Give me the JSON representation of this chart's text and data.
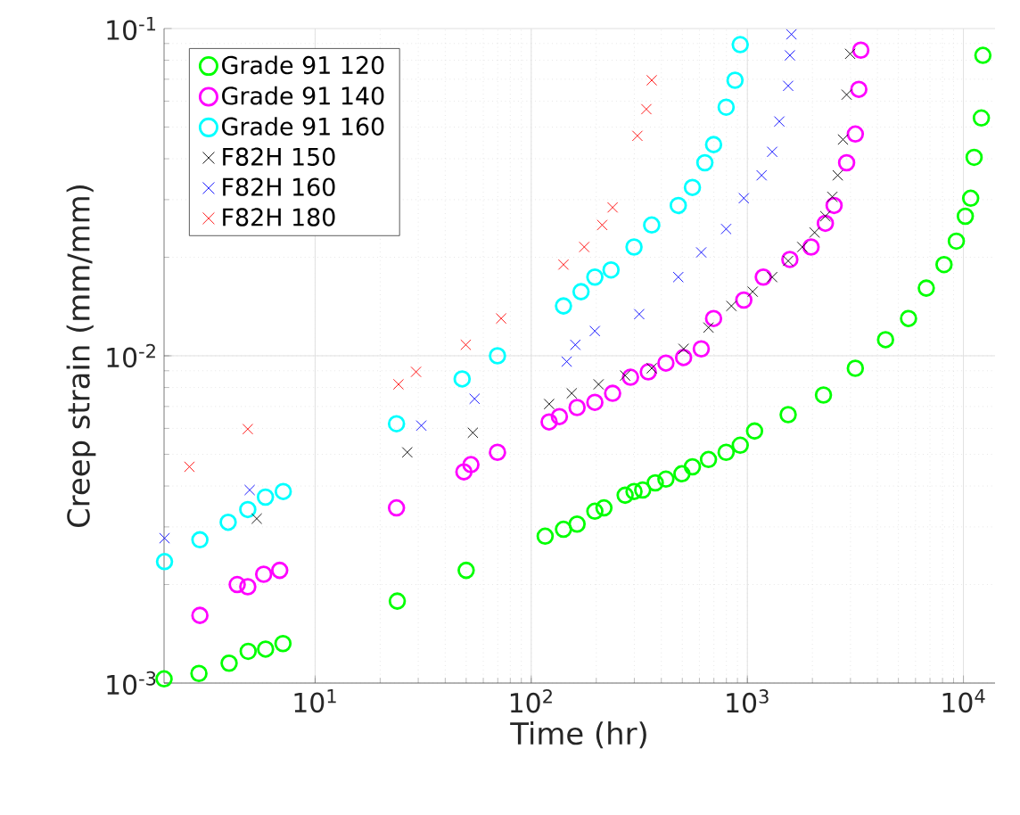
{
  "chart_data": {
    "type": "scatter",
    "xlabel": "Time (hr)",
    "ylabel": "Creep strain (mm/mm)",
    "log": "xy",
    "grid": true,
    "legend": "top left",
    "xlim": [
      2,
      14000
    ],
    "ylim": [
      0.001,
      0.1
    ],
    "xticks": [
      {
        "value": 10,
        "label": "10$^{1}$"
      },
      {
        "value": 100,
        "label": "10$^{2}$"
      },
      {
        "value": 1000,
        "label": "10$^{3}$"
      },
      {
        "value": 10000,
        "label": "10$^{4}$"
      }
    ],
    "yticks": [
      {
        "value": 0.001,
        "label": "10$^{-3}$"
      },
      {
        "value": 0.01,
        "label": "10$^{-2}$"
      },
      {
        "value": 0.1,
        "label": "10$^{-1}$"
      }
    ],
    "series": [
      {
        "name": "Grade 91 120",
        "color": "#00ff00",
        "marker": "circle",
        "x": [
          2.0,
          2.9,
          4.0,
          4.9,
          5.9,
          7.1,
          24,
          50,
          116,
          141,
          163,
          197,
          217,
          272,
          299,
          328,
          375,
          420,
          498,
          557,
          661,
          798,
          927,
          1080,
          1545,
          2250,
          3160,
          4360,
          5570,
          6730,
          8130,
          9270,
          10200,
          10800,
          11200,
          12100,
          12300
        ],
        "values": [
          0.00103,
          0.00107,
          0.00115,
          0.00125,
          0.00127,
          0.00132,
          0.00178,
          0.00221,
          0.00281,
          0.00295,
          0.00306,
          0.00335,
          0.00343,
          0.00375,
          0.00385,
          0.00389,
          0.00409,
          0.0042,
          0.00436,
          0.00458,
          0.00482,
          0.00507,
          0.00533,
          0.00589,
          0.00661,
          0.00759,
          0.00916,
          0.0112,
          0.013,
          0.0161,
          0.019,
          0.0224,
          0.0267,
          0.0303,
          0.0404,
          0.0533,
          0.0828
        ]
      },
      {
        "name": "Grade 91 140",
        "color": "#ff00ff",
        "marker": "circle",
        "x": [
          2.93,
          4.36,
          4.88,
          5.78,
          6.86,
          23.8,
          48.8,
          52.6,
          69.8,
          121,
          135,
          163,
          197,
          238,
          288,
          348,
          420,
          507,
          612,
          698,
          963,
          1185,
          1573,
          1972,
          2296,
          2520,
          2880,
          3160,
          3280,
          3350
        ],
        "values": [
          0.00161,
          0.002,
          0.00197,
          0.00215,
          0.00221,
          0.00343,
          0.00442,
          0.00465,
          0.00507,
          0.00628,
          0.00652,
          0.00695,
          0.00721,
          0.00768,
          0.0086,
          0.00893,
          0.0095,
          0.00988,
          0.0105,
          0.013,
          0.0148,
          0.0174,
          0.0197,
          0.0215,
          0.0254,
          0.0288,
          0.0389,
          0.0476,
          0.0652,
          0.0859
        ]
      },
      {
        "name": "Grade 91 160",
        "color": "#00ffff",
        "marker": "circle",
        "x": [
          2.01,
          2.93,
          3.96,
          4.88,
          5.89,
          7.12,
          23.8,
          47.9,
          69.8,
          141,
          170,
          197,
          234,
          299,
          361,
          479,
          557,
          636,
          698,
          798,
          877,
          927
        ],
        "values": [
          0.00235,
          0.00274,
          0.0031,
          0.00339,
          0.0037,
          0.00385,
          0.0062,
          0.0085,
          0.01,
          0.0142,
          0.0157,
          0.0174,
          0.0183,
          0.0215,
          0.0251,
          0.0288,
          0.0327,
          0.0389,
          0.0442,
          0.0575,
          0.0695,
          0.0893
        ]
      },
      {
        "name": "F82H 150",
        "color": "#000000",
        "marker": "cross",
        "x": [
          5.37,
          26.7,
          53.7,
          121,
          154,
          205,
          272,
          361,
          507,
          661,
          844,
          1059,
          1303,
          1545,
          1795,
          2047,
          2296,
          2473,
          2620,
          2770,
          2880,
          2990
        ],
        "values": [
          0.00318,
          0.00507,
          0.00582,
          0.00712,
          0.00768,
          0.00818,
          0.0087,
          0.00916,
          0.0105,
          0.0122,
          0.0142,
          0.0157,
          0.0174,
          0.0195,
          0.0215,
          0.0238,
          0.0267,
          0.0306,
          0.0356,
          0.0458,
          0.0628,
          0.0837
        ]
      },
      {
        "name": "F82H 160",
        "color": "#0000ff",
        "marker": "cross",
        "x": [
          2.01,
          4.98,
          31.0,
          54.7,
          146,
          160,
          197,
          316,
          479,
          612,
          798,
          963,
          1164,
          1303,
          1406,
          1545,
          1573,
          1600
        ],
        "values": [
          0.00277,
          0.00389,
          0.00612,
          0.00739,
          0.0096,
          0.0108,
          0.0119,
          0.0134,
          0.0174,
          0.0207,
          0.0244,
          0.0303,
          0.0356,
          0.042,
          0.052,
          0.0668,
          0.0828,
          0.096
        ]
      },
      {
        "name": "F82H 180",
        "color": "#ff0000",
        "marker": "cross",
        "x": [
          2.62,
          4.88,
          24.3,
          29.3,
          49.8,
          72.6,
          141,
          176,
          213,
          238,
          310,
          341,
          361
        ],
        "values": [
          0.00458,
          0.00597,
          0.00818,
          0.00893,
          0.0108,
          0.013,
          0.019,
          0.0215,
          0.0251,
          0.0284,
          0.047,
          0.0567,
          0.0695
        ]
      }
    ]
  }
}
